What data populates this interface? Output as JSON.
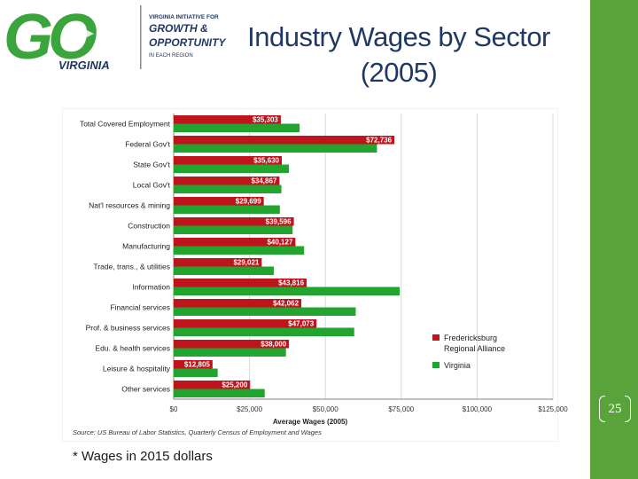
{
  "slide": {
    "title_line1": "Industry Wages by Sector",
    "title_line2": "(2005)",
    "footnote": "* Wages in 2015 dollars",
    "page_number": "25"
  },
  "logo": {
    "letters": "GO",
    "state": "VIRGINIA",
    "line1": "VIRGINIA INITIATIVE FOR",
    "line2": "GROWTH &",
    "line3": "OPPORTUNITY",
    "line4": "IN EACH REGION"
  },
  "colors": {
    "region_bar": "#c0141c",
    "state_bar": "#21a52f",
    "sidebar": "#5aa33a",
    "title": "#1f3864",
    "logo_green": "#3aa53a"
  },
  "chart_data": {
    "type": "bar",
    "orientation": "horizontal",
    "categories": [
      "Total Covered Employment",
      "Federal Gov't",
      "State Gov't",
      "Local Gov't",
      "Nat'l resources & mining",
      "Construction",
      "Manufacturing",
      "Trade, trans., & utilities",
      "Information",
      "Financial services",
      "Prof. & business services",
      "Edu. & health services",
      "Leisure & hospitality",
      "Other services"
    ],
    "series": [
      {
        "name": "Fredericksburg Regional Alliance",
        "values": [
          35303,
          72736,
          35630,
          34867,
          29699,
          39596,
          40127,
          29021,
          43816,
          42062,
          47073,
          38000,
          12805,
          25200
        ],
        "labels": [
          "$35,303",
          "$72,736",
          "$35,630",
          "$34,867",
          "$29,699",
          "$39,596",
          "$40,127",
          "$29,021",
          "$43,816",
          "$42,062",
          "$47,073",
          "$38,000",
          "$12,805",
          "$25,200"
        ]
      },
      {
        "name": "Virginia",
        "values": [
          41500,
          67000,
          38000,
          35500,
          35000,
          39200,
          43000,
          33000,
          74500,
          60000,
          59500,
          37000,
          14500,
          30000
        ]
      }
    ],
    "xlabel": "Average Wages (2005)",
    "xlim": [
      0,
      125000
    ],
    "xticks": [
      0,
      25000,
      50000,
      75000,
      100000,
      125000
    ],
    "xtick_labels": [
      "$0",
      "$25,000",
      "$50,000",
      "$75,000",
      "$100,000",
      "$125,000"
    ],
    "source": "Source: US Bureau of Labor Statistics, Quarterly Census of Employment and Wages",
    "legend_position": "right",
    "grid": "vertical"
  }
}
